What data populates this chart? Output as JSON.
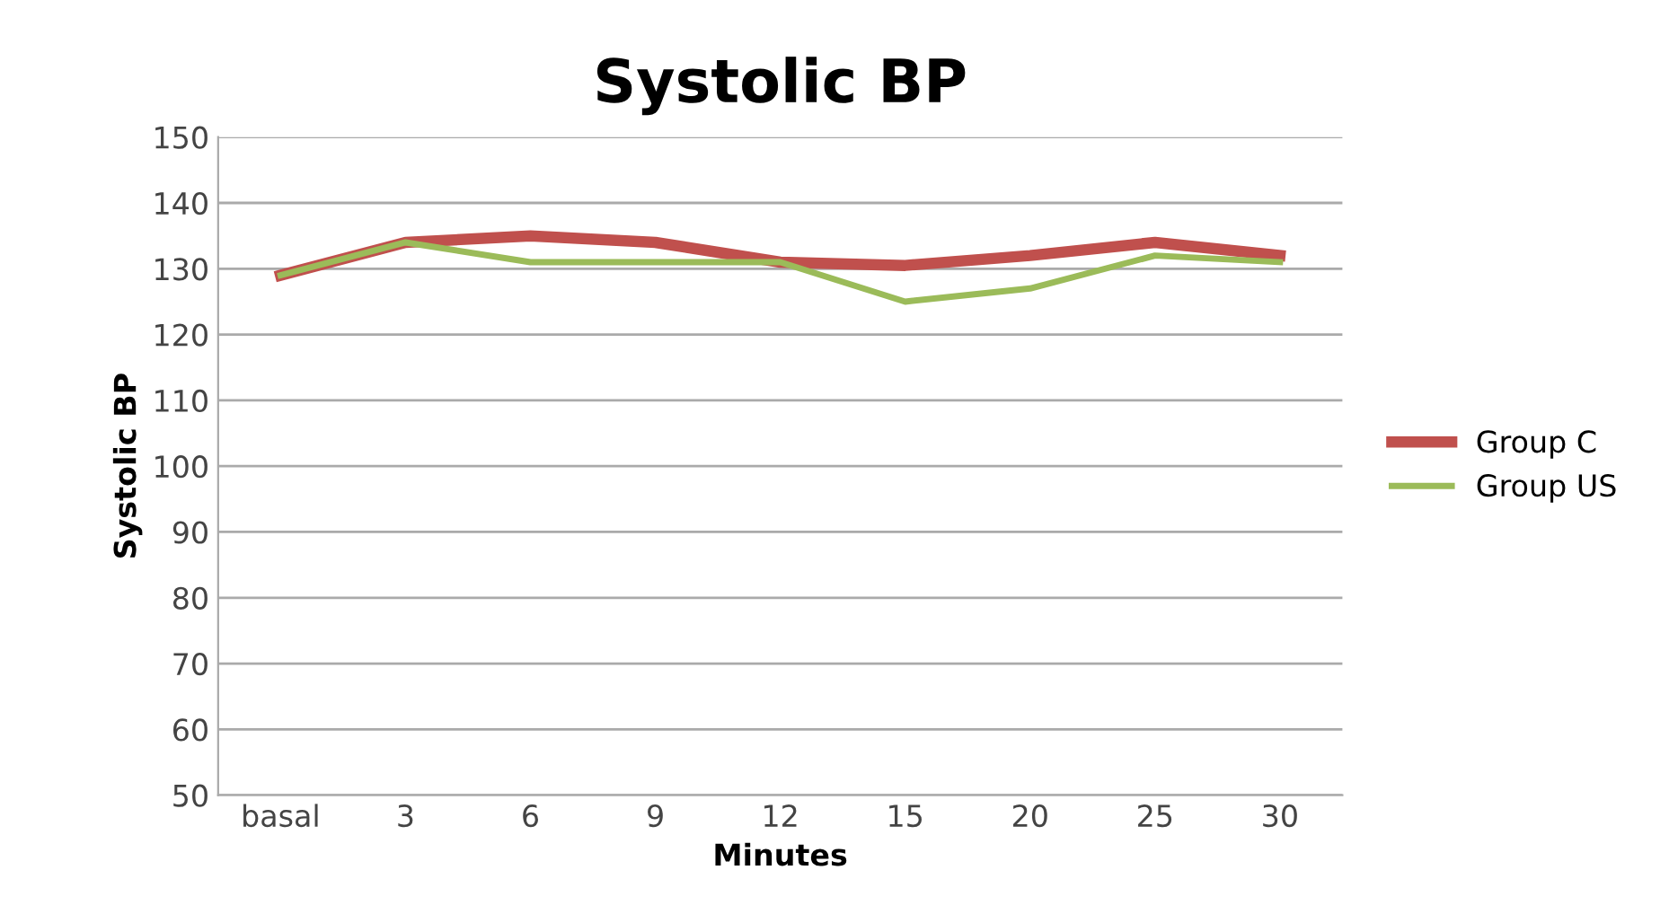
{
  "chart_data": {
    "type": "line",
    "title": "Systolic BP",
    "xlabel": "Minutes",
    "ylabel": "Systolic BP",
    "categories": [
      "basal",
      "3",
      "6",
      "9",
      "12",
      "15",
      "20",
      "25",
      "30"
    ],
    "series": [
      {
        "name": "Group C",
        "color": "#c0504d",
        "values": [
          129,
          134,
          135,
          134,
          131,
          130.5,
          132,
          134,
          132
        ]
      },
      {
        "name": "Group US",
        "color": "#9bbb59",
        "values": [
          129,
          134,
          131,
          131,
          131,
          125,
          127,
          132,
          131
        ]
      }
    ],
    "ylim": [
      50,
      150
    ],
    "yticks": [
      50,
      60,
      70,
      80,
      90,
      100,
      110,
      120,
      130,
      140,
      150
    ],
    "grid": "y",
    "legend": "right",
    "marker": "none",
    "line_style": "solid"
  }
}
